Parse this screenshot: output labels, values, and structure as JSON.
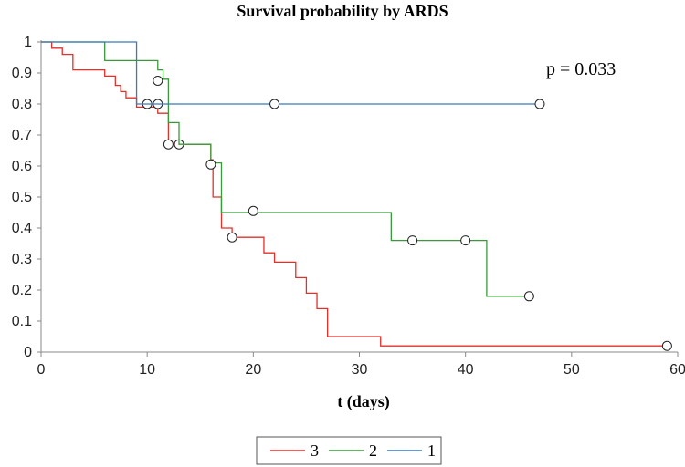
{
  "chart_data": {
    "type": "line",
    "title": "Survival probability by ARDS",
    "xlabel": "t (days)",
    "ylabel": "",
    "xlim": [
      0,
      60
    ],
    "ylim": [
      0,
      1
    ],
    "x_ticks": [
      "0",
      "10",
      "20",
      "30",
      "40",
      "50",
      "60"
    ],
    "y_ticks": [
      "0",
      "0.1",
      "0.2",
      "0.3",
      "0.4",
      "0.5",
      "0.6",
      "0.7",
      "0.8",
      "0.9",
      "1"
    ],
    "grid": false,
    "legend_position": "bottom",
    "annotation": "p = 0.033",
    "series": [
      {
        "name": "3",
        "color": "#e0312b",
        "steps": [
          [
            0,
            1
          ],
          [
            1,
            0.98
          ],
          [
            2,
            0.96
          ],
          [
            3,
            0.91
          ],
          [
            6,
            0.89
          ],
          [
            7,
            0.86
          ],
          [
            7.5,
            0.84
          ],
          [
            8,
            0.82
          ],
          [
            9,
            0.79
          ],
          [
            11,
            0.77
          ],
          [
            12,
            0.67
          ],
          [
            16,
            0.62
          ],
          [
            16.2,
            0.5
          ],
          [
            17,
            0.4
          ],
          [
            18,
            0.37
          ],
          [
            21,
            0.32
          ],
          [
            22,
            0.29
          ],
          [
            24,
            0.24
          ],
          [
            25,
            0.19
          ],
          [
            26,
            0.14
          ],
          [
            27,
            0.05
          ],
          [
            32,
            0.02
          ],
          [
            59,
            0.02
          ]
        ],
        "censored": [
          [
            10,
            0.8
          ],
          [
            11,
            0.8
          ],
          [
            12,
            0.67
          ],
          [
            13,
            0.67
          ],
          [
            18,
            0.37
          ],
          [
            59,
            0.02
          ]
        ]
      },
      {
        "name": "2",
        "color": "#3a9a3a",
        "steps": [
          [
            0,
            1
          ],
          [
            6,
            0.94
          ],
          [
            11,
            0.91
          ],
          [
            11.5,
            0.88
          ],
          [
            12,
            0.74
          ],
          [
            13,
            0.67
          ],
          [
            16,
            0.61
          ],
          [
            17,
            0.45
          ],
          [
            33,
            0.36
          ],
          [
            42,
            0.18
          ],
          [
            46,
            0.18
          ]
        ],
        "censored": [
          [
            11,
            0.875
          ],
          [
            16,
            0.605
          ],
          [
            20,
            0.455
          ],
          [
            35,
            0.36
          ],
          [
            40,
            0.36
          ],
          [
            46,
            0.18
          ]
        ]
      },
      {
        "name": "1",
        "color": "#3a7ab8",
        "steps": [
          [
            0,
            1
          ],
          [
            9,
            0.8
          ],
          [
            47,
            0.8
          ]
        ],
        "censored": [
          [
            22,
            0.8
          ],
          [
            47,
            0.8
          ]
        ]
      }
    ]
  }
}
